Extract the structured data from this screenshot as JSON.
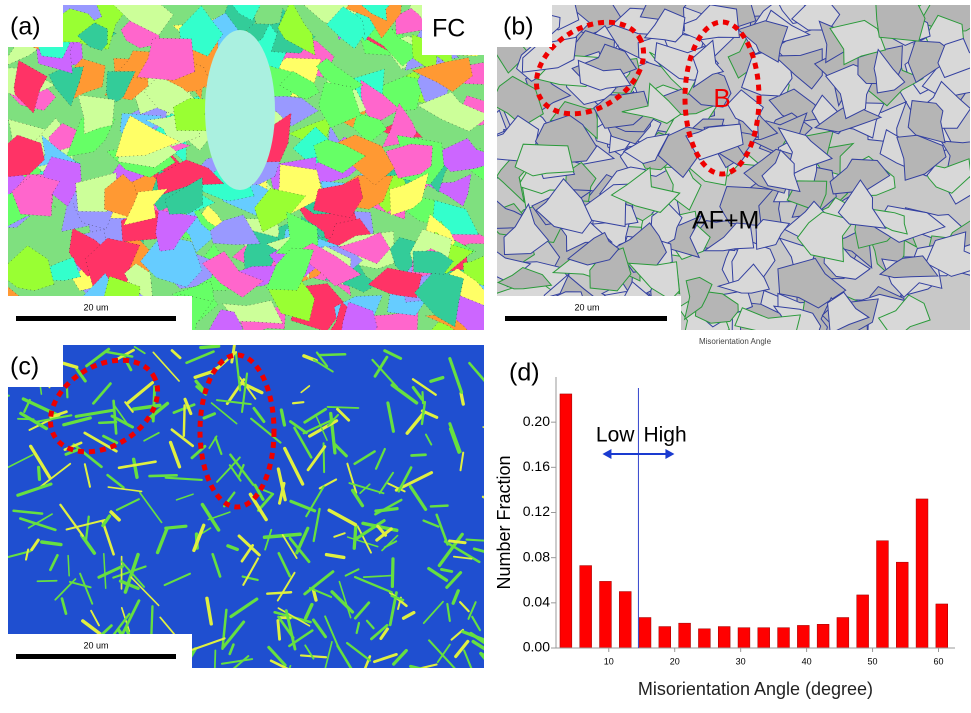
{
  "panels": [
    {
      "label": "(a)",
      "annotation": "FC",
      "scalebar": "20 um"
    },
    {
      "label": "(b)",
      "annotations": [
        "B",
        "AF+M"
      ],
      "scalebar": "20 um"
    },
    {
      "label": "(c)",
      "scalebar": "20 um"
    }
  ],
  "chart_data": {
    "type": "bar",
    "label": "(d)",
    "title": "Misorientation Angle",
    "x_label": "Misorientation Angle (degree)",
    "y_label": "Number Fraction",
    "x": [
      3.5,
      6.5,
      9.5,
      12.5,
      15.5,
      18.5,
      21.5,
      24.5,
      27.5,
      30.5,
      33.5,
      36.5,
      39.5,
      42.5,
      45.5,
      48.5,
      51.5,
      54.5,
      57.5,
      60.5
    ],
    "values": [
      0.225,
      0.073,
      0.059,
      0.05,
      0.027,
      0.019,
      0.022,
      0.017,
      0.019,
      0.018,
      0.018,
      0.018,
      0.02,
      0.021,
      0.027,
      0.047,
      0.095,
      0.076,
      0.132,
      0.039
    ],
    "color": "#ff0000",
    "xlim": [
      2,
      62.5
    ],
    "xticks": [
      10,
      20,
      30,
      40,
      50,
      60
    ],
    "ylim": [
      0,
      0.24
    ],
    "yticks": [
      {
        "value": 0,
        "label": "0.00"
      },
      {
        "value": 0.04,
        "label": "0.04"
      },
      {
        "value": 0.08,
        "label": "0.08"
      },
      {
        "value": 0.12,
        "label": "0.12"
      },
      {
        "value": 0.16,
        "label": "0.16"
      },
      {
        "value": 0.2,
        "label": "0.20"
      }
    ],
    "annotations": [
      {
        "x": 14.5,
        "left": "Low",
        "right": "High"
      }
    ]
  }
}
